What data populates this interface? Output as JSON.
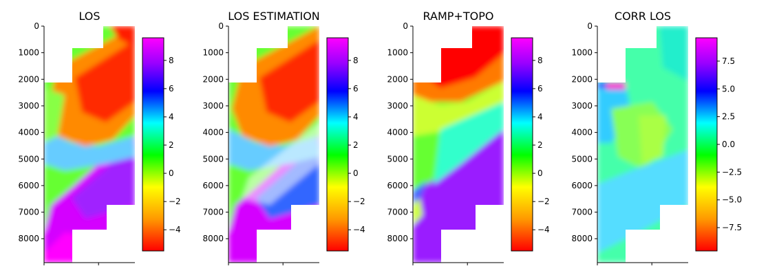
{
  "chart_data": [
    {
      "type": "heatmap",
      "title": "LOS",
      "y_ticks": [
        "0",
        "1000",
        "2000",
        "3000",
        "4000",
        "5000",
        "6000",
        "7000",
        "8000"
      ],
      "y_tick_values": [
        0,
        1000,
        2000,
        3000,
        4000,
        5000,
        6000,
        7000,
        8000
      ],
      "ylim": [
        8900,
        0
      ],
      "colorbar": {
        "colormap": "gist_rainbow",
        "range": [
          -5.5,
          9.6
        ],
        "ticks": [
          "8",
          "6",
          "4",
          "2",
          "0",
          "−2",
          "−4"
        ],
        "tick_values": [
          8,
          6,
          4,
          2,
          0,
          -2,
          -4
        ]
      }
    },
    {
      "type": "heatmap",
      "title": "LOS ESTIMATION",
      "y_ticks": [
        "0",
        "1000",
        "2000",
        "3000",
        "4000",
        "5000",
        "6000",
        "7000",
        "8000"
      ],
      "y_tick_values": [
        0,
        1000,
        2000,
        3000,
        4000,
        5000,
        6000,
        7000,
        8000
      ],
      "ylim": [
        8900,
        0
      ],
      "colorbar": {
        "colormap": "gist_rainbow",
        "range": [
          -5.5,
          9.6
        ],
        "ticks": [
          "8",
          "6",
          "4",
          "2",
          "0",
          "−2",
          "−4"
        ],
        "tick_values": [
          8,
          6,
          4,
          2,
          0,
          -2,
          -4
        ]
      }
    },
    {
      "type": "heatmap",
      "title": "RAMP+TOPO",
      "y_ticks": [
        "0",
        "1000",
        "2000",
        "3000",
        "4000",
        "5000",
        "6000",
        "7000",
        "8000"
      ],
      "y_tick_values": [
        0,
        1000,
        2000,
        3000,
        4000,
        5000,
        6000,
        7000,
        8000
      ],
      "ylim": [
        8900,
        0
      ],
      "colorbar": {
        "colormap": "gist_rainbow",
        "range": [
          -5.5,
          9.6
        ],
        "ticks": [
          "8",
          "6",
          "4",
          "2",
          "0",
          "−2",
          "−4"
        ],
        "tick_values": [
          8,
          6,
          4,
          2,
          0,
          -2,
          -4
        ]
      }
    },
    {
      "type": "heatmap",
      "title": "CORR LOS",
      "y_ticks": [
        "0",
        "1000",
        "2000",
        "3000",
        "4000",
        "5000",
        "6000",
        "7000",
        "8000"
      ],
      "y_tick_values": [
        0,
        1000,
        2000,
        3000,
        4000,
        5000,
        6000,
        7000,
        8000
      ],
      "ylim": [
        8900,
        0
      ],
      "colorbar": {
        "colormap": "gist_rainbow",
        "range": [
          -9.6,
          9.6
        ],
        "ticks": [
          "7.5",
          "5.0",
          "2.5",
          "0.0",
          "−2.5",
          "−5.0",
          "−7.5"
        ],
        "tick_values": [
          7.5,
          5.0,
          2.5,
          0.0,
          -2.5,
          -5.0,
          -7.5
        ]
      }
    }
  ]
}
